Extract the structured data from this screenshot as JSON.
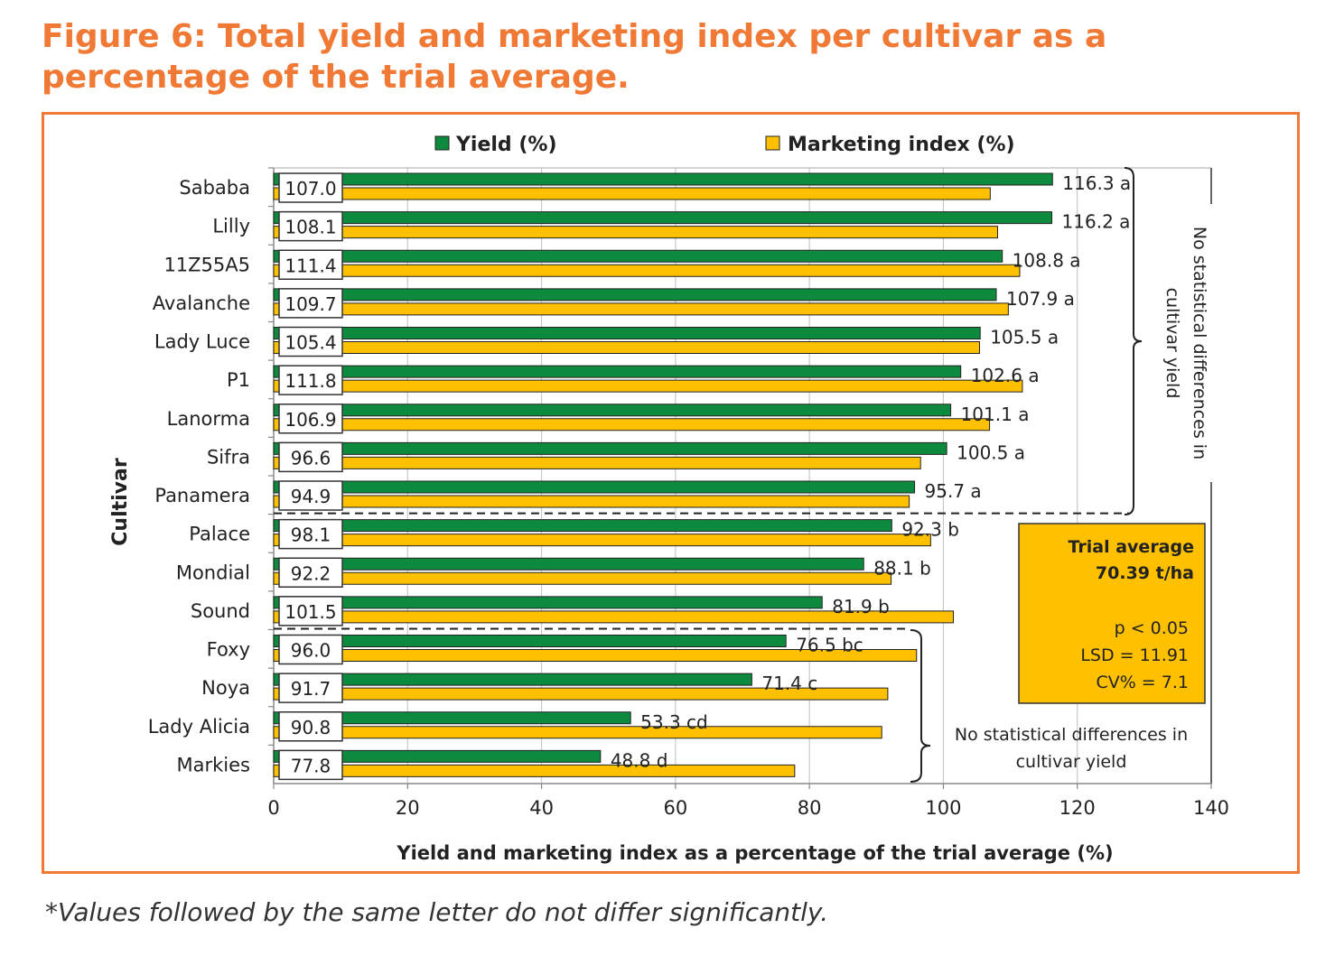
{
  "title": "Figure 6: Total yield and marketing index per cultivar as a percentage of the trial average.",
  "footnote": "*Values followed by the same letter do not differ significantly.",
  "colors": {
    "yield": "#0E8A3E",
    "marketing": "#FFC000",
    "accent": "#F07A35"
  },
  "chart_data": {
    "type": "bar",
    "orientation": "horizontal",
    "xlabel": "Yield and marketing index as a percentage of the trial average (%)",
    "ylabel": "Cultivar",
    "xlim": [
      0,
      140
    ],
    "xticks": [
      "0",
      "20",
      "40",
      "60",
      "80",
      "100",
      "120",
      "140"
    ],
    "grid": "vertical",
    "legend_position": "top",
    "categories": [
      "Sababa",
      "Lilly",
      "11Z55A5",
      "Avalanche",
      "Lady Luce",
      "P1",
      "Lanorma",
      "Sifra",
      "Panamera",
      "Palace",
      "Mondial",
      "Sound",
      "Foxy",
      "Noya",
      "Lady Alicia",
      "Markies"
    ],
    "series": [
      {
        "name": "Yield (%)",
        "values": [
          116.3,
          116.2,
          108.8,
          107.9,
          105.5,
          102.6,
          101.1,
          100.5,
          95.7,
          92.3,
          88.1,
          81.9,
          76.5,
          71.4,
          53.3,
          48.8
        ],
        "labels": [
          "116.3 a",
          "116.2 a",
          "108.8 a",
          "107.9 a",
          "105.5 a",
          "102.6 a",
          "101.1 a",
          "100.5 a",
          "95.7 a",
          "92.3 b",
          "88.1 b",
          "81.9 b",
          "76.5 bc",
          "71.4 c",
          "53.3 cd",
          "48.8 d"
        ]
      },
      {
        "name": "Marketing index (%)",
        "values": [
          107.0,
          108.1,
          111.4,
          109.7,
          105.4,
          111.8,
          106.9,
          96.6,
          94.9,
          98.1,
          92.2,
          101.5,
          96.0,
          91.7,
          90.8,
          77.8
        ],
        "labels": [
          "107.0",
          "108.1",
          "111.4",
          "109.7",
          "105.4",
          "111.8",
          "106.9",
          "96.6",
          "94.9",
          "98.1",
          "92.2",
          "101.5",
          "96.0",
          "91.7",
          "90.8",
          "77.8"
        ]
      }
    ],
    "annotations": {
      "top_group": "No statistical differences in cultivar yield",
      "bottom_group_line1": "No statistical differences in",
      "bottom_group_line2": "cultivar yield",
      "stats_box": {
        "line1": "Trial average",
        "line2": "70.39 t/ha",
        "line3": "p < 0.05",
        "line4": "LSD = 11.91",
        "line5": "CV% = 7.1"
      }
    }
  }
}
